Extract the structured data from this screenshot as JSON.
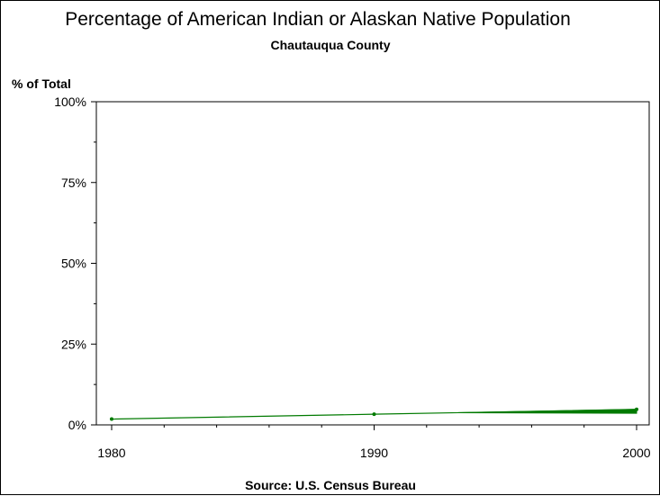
{
  "chart_data": {
    "type": "line",
    "title": "Percentage of American Indian or Alaskan Native Population",
    "subtitle": "Chautauqua County",
    "ylabel": "% of Total",
    "xlabel": "",
    "footnote": "Source: U.S. Census Bureau",
    "x_ticks": [
      "1980",
      "1990",
      "2000"
    ],
    "y_ticks": [
      "0%",
      "25%",
      "50%",
      "75%",
      "100%"
    ],
    "xlim": [
      1980,
      2000
    ],
    "ylim": [
      0,
      100
    ],
    "grid": false,
    "series": [
      {
        "x": [
          1980,
          1990,
          2000
        ],
        "y": [
          1.8,
          3.3,
          4.8
        ],
        "color": "#007a00"
      }
    ],
    "band_2000": {
      "x_start": 1993,
      "low": 3.6,
      "high": 4.8
    }
  }
}
